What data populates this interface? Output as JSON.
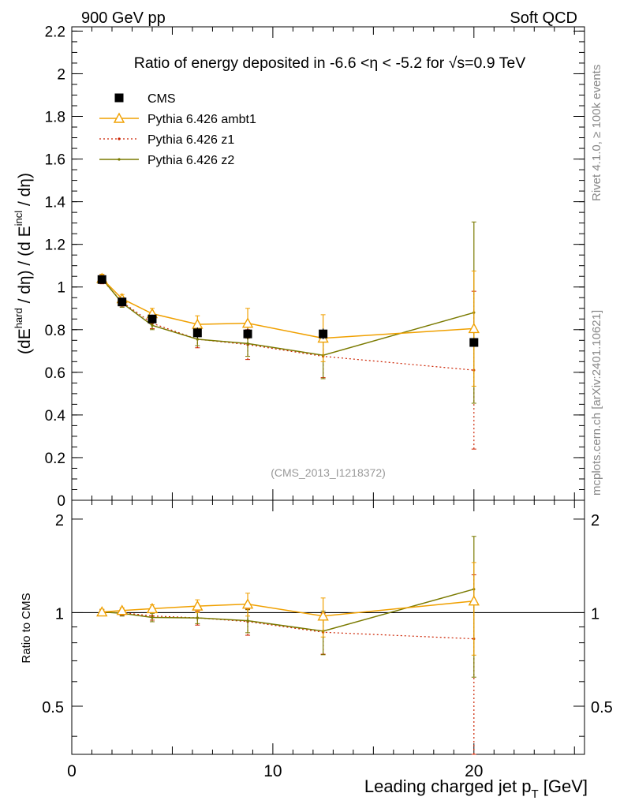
{
  "header": {
    "left": "900 GeV pp",
    "right": "Soft QCD"
  },
  "side_texts": {
    "rivet": "Rivet 4.1.0, ≥ 100k events",
    "mcplots": "mcplots.cern.ch [arXiv:2401.10621]"
  },
  "chart_data": [
    {
      "panel": "main",
      "type": "line",
      "title": "Ratio of energy deposited in -6.6 <η < -5.2 for √s=0.9 TeV",
      "ylabel": "(dE^hard / dη) / (d E^incl / dη)",
      "watermark": "(CMS_2013_I1218372)",
      "xlim": [
        0,
        25.5
      ],
      "ylim": [
        0,
        2.22
      ],
      "yticks": [
        0,
        0.2,
        0.4,
        0.6,
        0.8,
        1,
        1.2,
        1.4,
        1.6,
        1.8,
        2,
        2.2
      ],
      "yticklabels": [
        "0",
        "0.2",
        "0.4",
        "0.6",
        "0.8",
        "1",
        "1.2",
        "1.4",
        "1.6",
        "1.8",
        "2",
        "2.2"
      ],
      "legend_position": "top-left",
      "series": [
        {
          "name": "CMS",
          "style": "data",
          "color": "#000000",
          "x": [
            1.5,
            2.5,
            4.0,
            6.25,
            8.75,
            12.5,
            20.0
          ],
          "y": [
            1.035,
            0.93,
            0.85,
            0.785,
            0.78,
            0.78,
            0.74
          ],
          "err": [
            0.015,
            0.015,
            0.02,
            0.025,
            0.025,
            0.025,
            0.02
          ]
        },
        {
          "name": "Pythia 6.426 ambt1",
          "style": "ambt1",
          "color": "#f0a000",
          "x": [
            1.5,
            2.5,
            4.0,
            6.25,
            8.75,
            12.5,
            20.0
          ],
          "y": [
            1.04,
            0.945,
            0.875,
            0.825,
            0.83,
            0.76,
            0.805
          ],
          "err": [
            0.02,
            0.02,
            0.025,
            0.04,
            0.07,
            0.11,
            0.27
          ]
        },
        {
          "name": "Pythia 6.426 z1",
          "style": "z1",
          "color": "#cc2200",
          "x": [
            1.5,
            2.5,
            4.0,
            6.25,
            8.75,
            12.5,
            20.0
          ],
          "y": [
            1.035,
            0.93,
            0.83,
            0.755,
            0.73,
            0.675,
            0.61
          ],
          "err": [
            0.02,
            0.02,
            0.025,
            0.04,
            0.07,
            0.1,
            0.37
          ]
        },
        {
          "name": "Pythia 6.426 z2",
          "style": "z2",
          "color": "#7a7a00",
          "x": [
            1.5,
            2.5,
            4.0,
            6.25,
            8.75,
            12.5,
            20.0
          ],
          "y": [
            1.04,
            0.925,
            0.82,
            0.755,
            0.735,
            0.68,
            0.88
          ],
          "err": [
            0.02,
            0.02,
            0.02,
            0.03,
            0.06,
            0.11,
            0.425
          ]
        }
      ]
    },
    {
      "panel": "ratio",
      "type": "line",
      "ylabel": "Ratio to CMS",
      "xlabel": "Leading charged jet p_T [GeV]",
      "xlim": [
        0,
        25.5
      ],
      "ylim": [
        0.35,
        2.3
      ],
      "yscale": "log",
      "yticks": [
        0.5,
        1,
        2
      ],
      "yticklabels": [
        "0.5",
        "1",
        "2"
      ],
      "xticks": [
        0,
        10,
        20
      ],
      "xticklabels": [
        "0",
        "10",
        "20"
      ],
      "reference_line": 1,
      "series": [
        {
          "name": "Pythia 6.426 ambt1",
          "style": "ambt1",
          "color": "#f0a000",
          "x": [
            1.5,
            2.5,
            4.0,
            6.25,
            8.75,
            12.5,
            20.0
          ],
          "y": [
            1.005,
            1.016,
            1.03,
            1.05,
            1.065,
            0.975,
            1.09
          ],
          "err": [
            0.02,
            0.02,
            0.03,
            0.05,
            0.09,
            0.14,
            0.36
          ]
        },
        {
          "name": "Pythia 6.426 z1",
          "style": "z1",
          "color": "#cc2200",
          "x": [
            1.5,
            2.5,
            4.0,
            6.25,
            8.75,
            12.5,
            20.0
          ],
          "y": [
            1.0,
            1.0,
            0.976,
            0.962,
            0.936,
            0.865,
            0.824
          ],
          "err": [
            0.02,
            0.02,
            0.03,
            0.05,
            0.09,
            0.13,
            0.5
          ]
        },
        {
          "name": "Pythia 6.426 z2",
          "style": "z2",
          "color": "#7a7a00",
          "x": [
            1.5,
            2.5,
            4.0,
            6.25,
            8.75,
            12.5,
            20.0
          ],
          "y": [
            1.005,
            0.995,
            0.965,
            0.962,
            0.942,
            0.872,
            1.19
          ],
          "err": [
            0.02,
            0.02,
            0.03,
            0.04,
            0.08,
            0.14,
            0.57
          ]
        }
      ]
    }
  ]
}
